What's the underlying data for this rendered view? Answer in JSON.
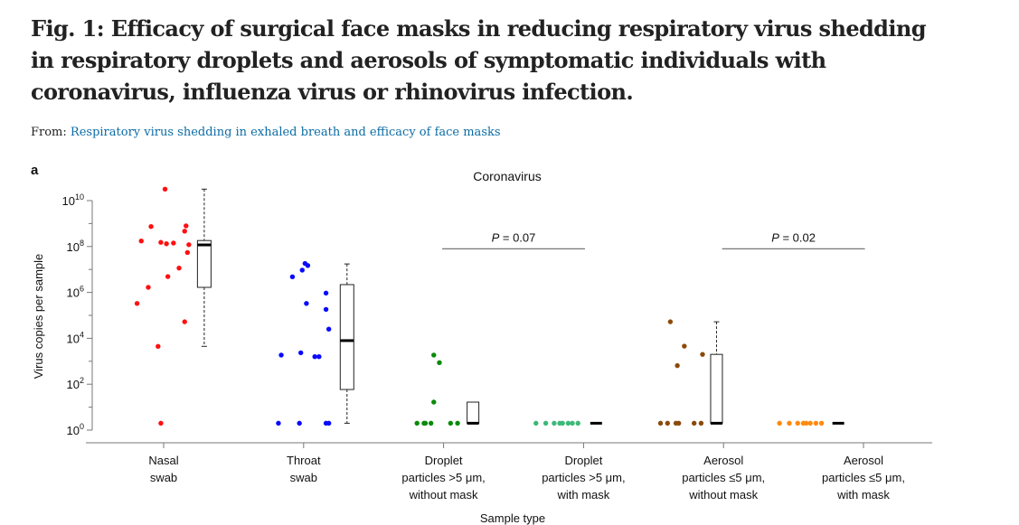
{
  "title": "Fig. 1: Efficacy of surgical face masks in reducing respiratory virus shedding in respiratory droplets and aerosols of symptomatic individuals with coronavirus, influenza virus or rhinovirus infection.",
  "from_label": "From:",
  "from_link": "Respiratory virus shedding in exhaled breath and efficacy of face masks",
  "panel_label": "a",
  "chart_data": {
    "type": "scatter",
    "title": "Coronavirus",
    "xlabel": "Sample type",
    "ylabel": "Virus copies per sample",
    "y_scale": "log10",
    "ylim_log10": [
      0,
      10
    ],
    "ytick_labels": [
      {
        "base": "10",
        "exp": "0",
        "v": 0
      },
      {
        "base": "10",
        "exp": "2",
        "v": 2
      },
      {
        "base": "10",
        "exp": "4",
        "v": 4
      },
      {
        "base": "10",
        "exp": "6",
        "v": 6
      },
      {
        "base": "10",
        "exp": "8",
        "v": 8
      },
      {
        "base": "10",
        "exp": "10",
        "v": 10
      }
    ],
    "annotations": [
      {
        "text_italic": "P",
        "text": " = 0.07",
        "from": 3,
        "to": 4,
        "y_log10": 7.9
      },
      {
        "text_italic": "P",
        "text": " = 0.02",
        "from": 5,
        "to": 6,
        "y_log10": 7.9
      }
    ],
    "categories": [
      {
        "label": [
          "Nasal",
          "swab"
        ],
        "color": "#ff1010",
        "points": [
          [
            0.01,
            10.5
          ],
          [
            -0.09,
            8.87
          ],
          [
            0.16,
            8.9
          ],
          [
            0.15,
            8.67
          ],
          [
            -0.16,
            8.24
          ],
          [
            -0.02,
            8.18
          ],
          [
            0.02,
            8.12
          ],
          [
            0.07,
            8.15
          ],
          [
            0.18,
            8.08
          ],
          [
            0.17,
            7.74
          ],
          [
            0.11,
            7.06
          ],
          [
            0.03,
            6.69
          ],
          [
            -0.11,
            6.22
          ],
          [
            -0.19,
            5.52
          ],
          [
            0.15,
            4.72
          ],
          [
            -0.04,
            3.65
          ],
          [
            -0.02,
            0.3
          ]
        ],
        "box": {
          "pos": 0.29,
          "whisk_low": 3.65,
          "q1": 6.22,
          "median": 8.07,
          "q3": 8.26,
          "whisk_high": 10.5
        }
      },
      {
        "label": [
          "Throat",
          "swab"
        ],
        "color": "#0a0aff",
        "points": [
          [
            0.01,
            7.26
          ],
          [
            0.03,
            7.17
          ],
          [
            -0.01,
            6.97
          ],
          [
            -0.08,
            6.68
          ],
          [
            0.16,
            5.97
          ],
          [
            0.02,
            5.52
          ],
          [
            0.16,
            5.26
          ],
          [
            0.18,
            4.4
          ],
          [
            -0.02,
            3.37
          ],
          [
            -0.16,
            3.27
          ],
          [
            0.08,
            3.2
          ],
          [
            0.11,
            3.2
          ],
          [
            -0.18,
            0.3
          ],
          [
            -0.03,
            0.3
          ],
          [
            0.16,
            0.3
          ],
          [
            0.18,
            0.3
          ]
        ],
        "box": {
          "pos": 0.31,
          "whisk_low": 0.3,
          "q1": 1.77,
          "median": 3.9,
          "q3": 6.34,
          "whisk_high": 7.24
        }
      },
      {
        "label": [
          "Droplet",
          "particles >5 μm,",
          "without mask"
        ],
        "color": "#0a8a0a",
        "points": [
          [
            -0.07,
            3.27
          ],
          [
            -0.03,
            2.94
          ],
          [
            -0.07,
            1.22
          ],
          [
            -0.19,
            0.3
          ],
          [
            -0.14,
            0.3
          ],
          [
            -0.13,
            0.3
          ],
          [
            -0.09,
            0.3
          ],
          [
            0.05,
            0.3
          ],
          [
            0.1,
            0.3
          ]
        ],
        "box": {
          "pos": 0.21,
          "whisk_low": 0.3,
          "q1": 0.3,
          "median": 0.3,
          "q3": 1.22,
          "whisk_high": 1.22
        }
      },
      {
        "label": [
          "Droplet",
          "particles >5 μm,",
          "with mask"
        ],
        "color": "#3cb878",
        "points": [
          [
            -0.34,
            0.3
          ],
          [
            -0.27,
            0.3
          ],
          [
            -0.21,
            0.3
          ],
          [
            -0.17,
            0.3
          ],
          [
            -0.15,
            0.3
          ],
          [
            -0.11,
            0.3
          ],
          [
            -0.08,
            0.3
          ],
          [
            -0.04,
            0.3
          ]
        ],
        "box": {
          "pos": 0.09,
          "whisk_low": 0.3,
          "q1": 0.3,
          "median": 0.3,
          "q3": 0.3,
          "whisk_high": 0.3
        }
      },
      {
        "label": [
          "Aerosol",
          "particles ≤5 μm,",
          "without mask"
        ],
        "color": "#8b4a0a",
        "points": [
          [
            -0.38,
            4.72
          ],
          [
            -0.28,
            3.66
          ],
          [
            -0.33,
            2.81
          ],
          [
            -0.15,
            3.3
          ],
          [
            -0.45,
            0.3
          ],
          [
            -0.4,
            0.3
          ],
          [
            -0.34,
            0.3
          ],
          [
            -0.32,
            0.3
          ],
          [
            -0.21,
            0.3
          ],
          [
            -0.16,
            0.3
          ]
        ],
        "box": {
          "pos": -0.05,
          "whisk_low": 0.3,
          "q1": 0.3,
          "median": 0.3,
          "q3": 3.3,
          "whisk_high": 4.72
        }
      },
      {
        "label": [
          "Aerosol",
          "particles ≤5 μm,",
          "with mask"
        ],
        "color": "#ff8a10",
        "points": [
          [
            -0.6,
            0.3
          ],
          [
            -0.53,
            0.3
          ],
          [
            -0.47,
            0.3
          ],
          [
            -0.43,
            0.3
          ],
          [
            -0.41,
            0.3
          ],
          [
            -0.38,
            0.3
          ],
          [
            -0.34,
            0.3
          ],
          [
            -0.3,
            0.3
          ]
        ],
        "box": {
          "pos": -0.18,
          "whisk_low": 0.3,
          "q1": 0.3,
          "median": 0.3,
          "q3": 0.3,
          "whisk_high": 0.3
        }
      }
    ]
  }
}
